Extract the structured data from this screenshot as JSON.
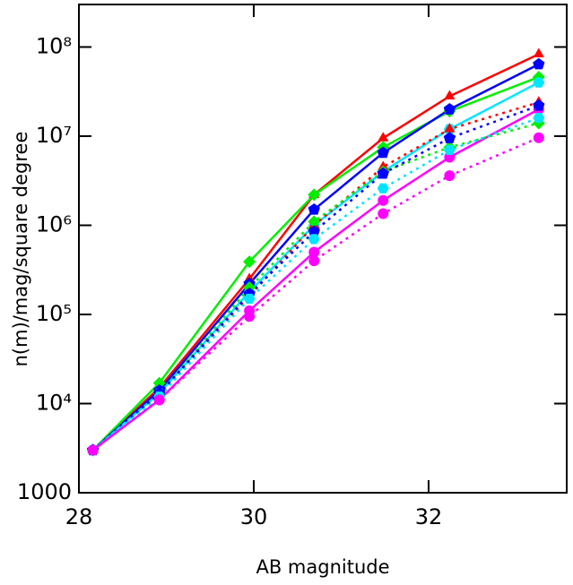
{
  "chart_data": {
    "type": "line",
    "x_label": "AB magnitude",
    "y_label": "n(m)/mag/square degree",
    "x": [
      28.16,
      28.92,
      29.95,
      30.69,
      31.48,
      32.24,
      33.26
    ],
    "xlim": [
      28,
      33.58
    ],
    "xticks": [
      28,
      30,
      32
    ],
    "ylim": [
      1000,
      300000000
    ],
    "y_log": true,
    "yticks": [
      1000,
      {
        "value": 10000,
        "label": "10⁴"
      },
      {
        "value": 100000,
        "label": "10⁵"
      },
      {
        "value": 1000000,
        "label": "10⁶"
      },
      {
        "value": 10000000,
        "label": "10⁷"
      },
      {
        "value": 100000000,
        "label": "10⁸"
      }
    ],
    "series": [
      {
        "color": "#ff0000",
        "marker": "triangle",
        "line": "solid",
        "values": [
          3000,
          15000,
          250000,
          2200000,
          9500000,
          28000000,
          83000000
        ]
      },
      {
        "color": "#00ee00",
        "marker": "diamond",
        "line": "solid",
        "values": [
          3000,
          17000,
          390000,
          2200000,
          7500000,
          19000000,
          46000000
        ]
      },
      {
        "color": "#0000ff",
        "marker": "pentagon",
        "line": "solid",
        "values": [
          3000,
          14000,
          220000,
          1500000,
          6500000,
          20000000,
          64000000
        ]
      },
      {
        "color": "#00e5ff",
        "marker": "hexagon",
        "line": "solid",
        "values": [
          3000,
          13000,
          180000,
          1000000,
          4000000,
          12000000,
          40000000
        ]
      },
      {
        "color": "#ff00ff",
        "marker": "circle",
        "line": "solid",
        "values": [
          3000,
          11000,
          110000,
          500000,
          1900000,
          5800000,
          20000000
        ]
      },
      {
        "color": "#ff0000",
        "marker": "triangle",
        "line": "dotted",
        "values": [
          3000,
          13000,
          160000,
          1000000,
          4500000,
          12000000,
          24000000
        ]
      },
      {
        "color": "#00ee00",
        "marker": "diamond",
        "line": "dotted",
        "values": [
          3000,
          13000,
          200000,
          1100000,
          4000000,
          7500000,
          14000000
        ]
      },
      {
        "color": "#0000ff",
        "marker": "pentagon",
        "line": "dotted",
        "values": [
          3000,
          13000,
          170000,
          850000,
          3800000,
          9500000,
          22000000
        ]
      },
      {
        "color": "#00e5ff",
        "marker": "hexagon",
        "line": "dotted",
        "values": [
          3000,
          12000,
          150000,
          700000,
          2600000,
          7000000,
          16000000
        ]
      },
      {
        "color": "#ff00ff",
        "marker": "circle",
        "line": "dotted",
        "values": [
          3000,
          11000,
          95000,
          400000,
          1350000,
          3600000,
          9600000
        ]
      }
    ]
  }
}
